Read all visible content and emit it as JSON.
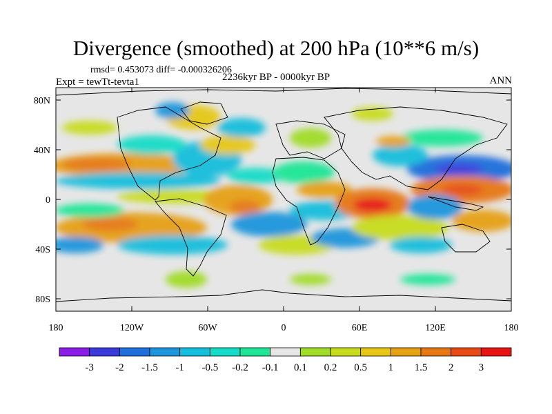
{
  "title": "Divergence (smoothed) at 200 hPa (10**6 m/s)",
  "stats_line": "rmsd= 0.453073 diff= -0.000326206",
  "experiment": "Expt = tewTt-tevta1",
  "period": "2236kyr BP - 0000kyr BP",
  "season": "ANN",
  "map": {
    "x_ticks": [
      "180",
      "120W",
      "60W",
      "0",
      "60E",
      "120E",
      "180"
    ],
    "y_ticks": [
      "80N",
      "40N",
      "0",
      "40S",
      "80S"
    ],
    "background_color": "#e6e6e6"
  },
  "colorbar": {
    "colors": [
      "#8a1ee6",
      "#3b3bdc",
      "#1e6edc",
      "#1e96dc",
      "#14bedc",
      "#14dcc8",
      "#1ee696",
      "#e6e6e6",
      "#a0dc28",
      "#c8dc1e",
      "#e6c814",
      "#e6a014",
      "#e67814",
      "#e64b14",
      "#e61414"
    ],
    "labels": [
      "-3",
      "-2",
      "-1.5",
      "-1",
      "-0.5",
      "-0.2",
      "-0.1",
      "0.1",
      "0.2",
      "0.5",
      "1",
      "1.5",
      "2",
      "3"
    ]
  }
}
